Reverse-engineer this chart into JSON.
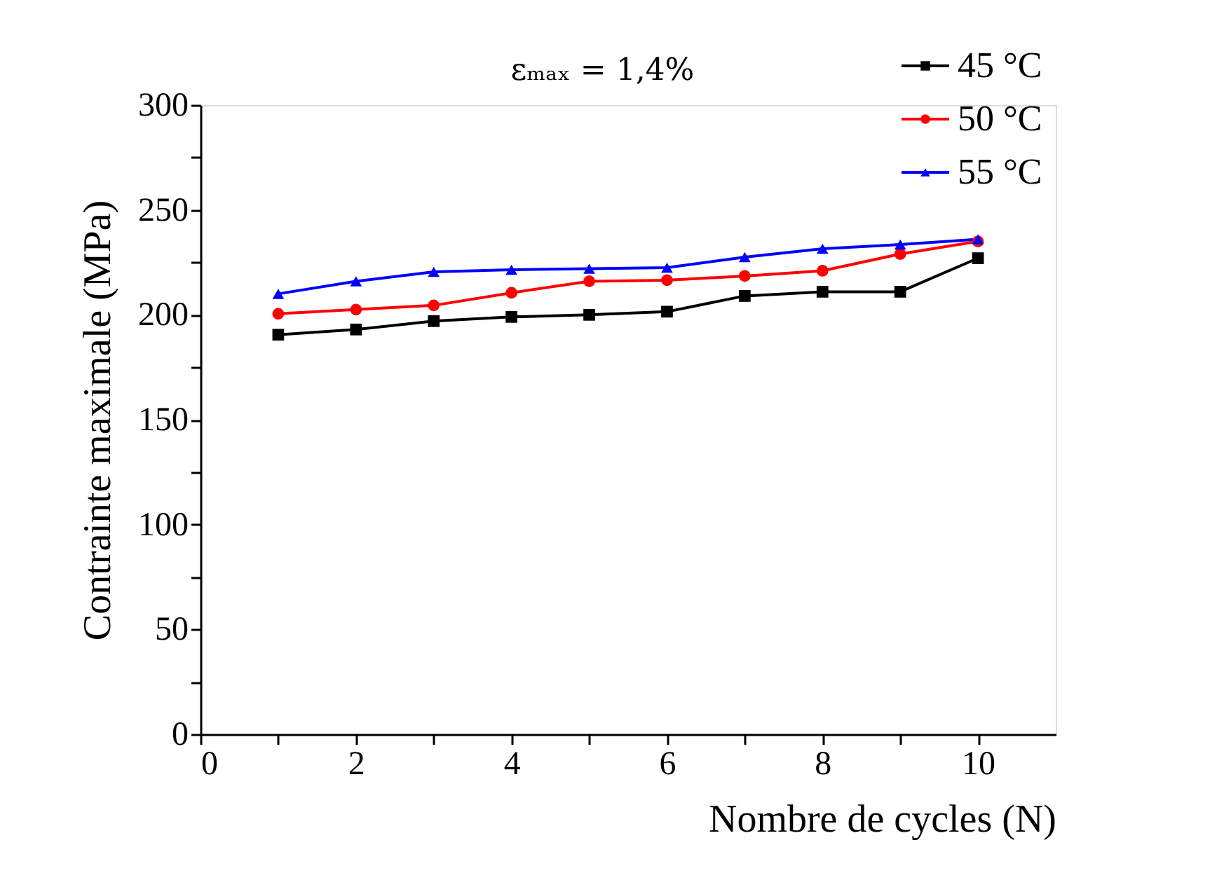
{
  "chart_data": {
    "type": "line",
    "title": "εₘₐₓ = 1,4%",
    "xlabel": "Nombre de cycles (N)",
    "ylabel": "Contrainte maximale  (MPa)",
    "x": [
      1,
      2,
      3,
      4,
      5,
      6,
      7,
      8,
      9,
      10
    ],
    "series": [
      {
        "name": "45 °C",
        "color": "#000000",
        "marker": "square",
        "values": [
          190.5,
          193,
          197,
          199,
          200,
          201.5,
          209,
          211,
          211,
          227
        ]
      },
      {
        "name": "50 °C",
        "color": "#ff0000",
        "marker": "circle",
        "values": [
          200.5,
          202.5,
          204.5,
          210.5,
          216,
          216.5,
          218.5,
          221,
          229,
          235
        ]
      },
      {
        "name": "55 °C",
        "color": "#0000ff",
        "marker": "triangle",
        "values": [
          210,
          216,
          220.5,
          221.5,
          222,
          222.5,
          227.5,
          231.5,
          233.5,
          236
        ]
      }
    ],
    "xlim": [
      0,
      11
    ],
    "xticks": [
      0,
      {
        "value": 1,
        "label": null
      },
      2,
      {
        "value": 3,
        "label": null
      },
      4,
      {
        "value": 5,
        "label": null
      },
      6,
      {
        "value": 7,
        "label": null
      },
      8,
      {
        "value": 9,
        "label": null
      },
      10
    ],
    "ylim": [
      0,
      300
    ],
    "yticks": [
      0,
      {
        "value": 25,
        "label": null
      },
      50,
      {
        "value": 75,
        "label": null
      },
      100,
      {
        "value": 125,
        "label": null
      },
      150,
      {
        "value": 175,
        "label": null
      },
      200,
      {
        "value": 225,
        "label": null
      },
      250,
      {
        "value": 275,
        "label": null
      },
      300
    ],
    "grid": false,
    "legend": "top right"
  }
}
